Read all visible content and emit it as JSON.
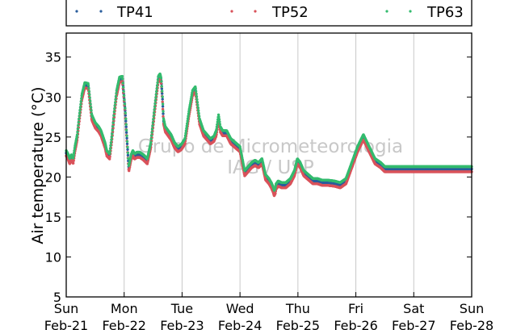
{
  "watermark": {
    "line1": "Grupo de Micrometeorologia",
    "line2": "IAG / USP"
  },
  "chart_data": {
    "type": "scatter",
    "title": "",
    "xlabel": "",
    "ylabel": "Air temperature (°C)",
    "ylim": [
      5,
      38
    ],
    "xlim": [
      0,
      7
    ],
    "y_ticks": [
      5,
      10,
      15,
      20,
      25,
      30,
      35
    ],
    "x_ticks": [
      {
        "x": 0,
        "day": "Sun",
        "date": "Feb-21"
      },
      {
        "x": 1,
        "day": "Mon",
        "date": "Feb-22"
      },
      {
        "x": 2,
        "day": "Tue",
        "date": "Feb-23"
      },
      {
        "x": 3,
        "day": "Wed",
        "date": "Feb-24"
      },
      {
        "x": 4,
        "day": "Thu",
        "date": "Feb-25"
      },
      {
        "x": 5,
        "day": "Fri",
        "date": "Feb-26"
      },
      {
        "x": 6,
        "day": "Sat",
        "date": "Feb-27"
      },
      {
        "x": 7,
        "day": "Sun",
        "date": "Feb-28"
      }
    ],
    "grid": "vertical",
    "legend_position": "top",
    "x_unit": "days since Feb-21 00:00",
    "base_x": [
      0.0,
      0.03,
      0.06,
      0.09,
      0.12,
      0.15,
      0.19,
      0.22,
      0.27,
      0.32,
      0.38,
      0.44,
      0.5,
      0.56,
      0.6,
      0.67,
      0.7,
      0.75,
      0.79,
      0.83,
      0.87,
      0.92,
      0.97,
      1.02,
      1.08,
      1.12,
      1.15,
      1.18,
      1.22,
      1.27,
      1.33,
      1.4,
      1.46,
      1.52,
      1.56,
      1.59,
      1.62,
      1.64,
      1.66,
      1.68,
      1.71,
      1.76,
      1.81,
      1.87,
      1.93,
      1.99,
      2.05,
      2.12,
      2.18,
      2.23,
      2.3,
      2.37,
      2.43,
      2.49,
      2.55,
      2.59,
      2.63,
      2.66,
      2.7,
      2.77,
      2.84,
      2.92,
      3.0,
      3.08,
      3.14,
      3.2,
      3.26,
      3.32,
      3.38,
      3.44,
      3.5,
      3.54,
      3.57,
      3.59,
      3.61,
      3.62,
      3.66,
      3.72,
      3.79,
      3.87,
      3.94,
      3.99,
      4.04,
      4.1,
      4.18,
      4.26,
      4.34,
      4.42,
      4.52,
      4.63,
      4.73,
      4.83,
      4.93,
      5.03,
      5.13,
      5.23,
      5.33,
      5.43,
      5.5,
      5.57,
      5.62,
      5.68,
      5.75,
      5.82,
      5.89,
      5.96,
      6.03,
      6.1,
      6.18,
      6.26,
      6.33,
      6.4,
      6.45,
      6.5,
      6.55,
      6.6,
      6.67,
      6.74,
      6.82,
      6.9,
      7.0
    ],
    "base_y": [
      23.0,
      22.6,
      22.0,
      22.5,
      22.0,
      23.5,
      25.0,
      27.0,
      30.0,
      31.5,
      31.4,
      27.5,
      26.5,
      26.0,
      25.5,
      24.0,
      23.0,
      22.6,
      25.0,
      28.0,
      30.5,
      32.2,
      32.3,
      28.0,
      21.0,
      22.5,
      23.0,
      22.6,
      22.8,
      22.8,
      22.5,
      22.0,
      24.0,
      28.0,
      30.5,
      32.3,
      32.6,
      32.0,
      30.0,
      27.0,
      26.0,
      25.5,
      25.0,
      24.0,
      23.5,
      23.8,
      24.5,
      28.0,
      30.5,
      31.0,
      27.0,
      25.5,
      25.0,
      24.5,
      24.8,
      25.5,
      27.5,
      26.0,
      25.5,
      25.5,
      24.5,
      24.0,
      23.5,
      20.5,
      21.0,
      21.5,
      21.8,
      21.5,
      22.0,
      20.0,
      19.5,
      19.0,
      18.5,
      18.0,
      18.3,
      18.8,
      19.2,
      19.0,
      19.0,
      19.5,
      20.5,
      22.0,
      21.5,
      20.5,
      20.0,
      19.5,
      19.5,
      19.3,
      19.3,
      19.2,
      19.0,
      19.5,
      21.5,
      23.5,
      25.0,
      23.5,
      22.0,
      21.5,
      21.0,
      21.0,
      21.0,
      21.0,
      21.0,
      21.0,
      21.0,
      21.0,
      21.0,
      21.0,
      21.0,
      21.0,
      21.0,
      21.0,
      21.0,
      21.0,
      21.0,
      21.0,
      21.0,
      21.0,
      21.0,
      21.0,
      21.0
    ],
    "series": [
      {
        "name": "TP41",
        "color": "#2a5d9c"
      },
      {
        "name": "TP52",
        "color": "#d9525a"
      },
      {
        "name": "TP63",
        "color": "#33bb6e"
      }
    ]
  }
}
